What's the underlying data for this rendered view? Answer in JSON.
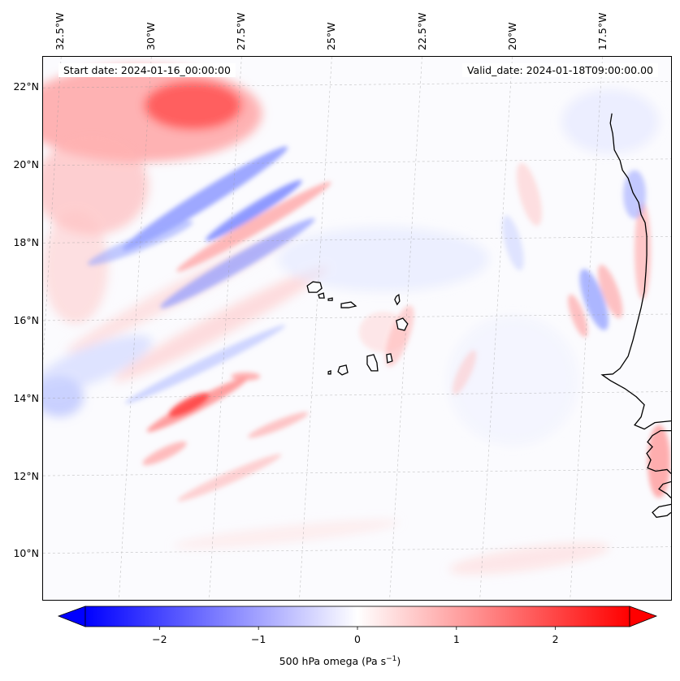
{
  "header": {
    "start_date": "Start date: 2024-01-16_00:00:00",
    "valid_date": "Valid_date: 2024-01-18T09:00:00.00"
  },
  "map": {
    "projection_extent": {
      "lon_min": -33.0,
      "lon_max": -15.6,
      "lat_min": 8.8,
      "lat_max": 22.8
    },
    "lon_labels": [
      "32.5°W",
      "30°W",
      "27.5°W",
      "25°W",
      "22.5°W",
      "20°W",
      "17.5°W"
    ],
    "lon_values": [
      -32.5,
      -30,
      -27.5,
      -25,
      -22.5,
      -20,
      -17.5
    ],
    "lat_labels": [
      "22°N",
      "20°N",
      "18°N",
      "16°N",
      "14°N",
      "12°N",
      "10°N"
    ],
    "lat_values": [
      22,
      20,
      18,
      16,
      14,
      12,
      10
    ],
    "gridlines": true,
    "field": "500 hPa omega",
    "features": [
      "Cape Verde islands",
      "West African coastline"
    ]
  },
  "colorbar": {
    "cmap": "bwr",
    "range": [
      -2.75,
      2.75
    ],
    "ticks": [
      -2,
      -1,
      0,
      1,
      2
    ],
    "tick_labels": [
      "−2",
      "−1",
      "0",
      "1",
      "2"
    ],
    "label_main": "500 hPa omega (Pa s",
    "label_sup": "−1",
    "label_end": ")",
    "color_low": "#0000ff",
    "color_mid": "#ffffff",
    "color_high": "#ff0000",
    "extend": "both"
  }
}
